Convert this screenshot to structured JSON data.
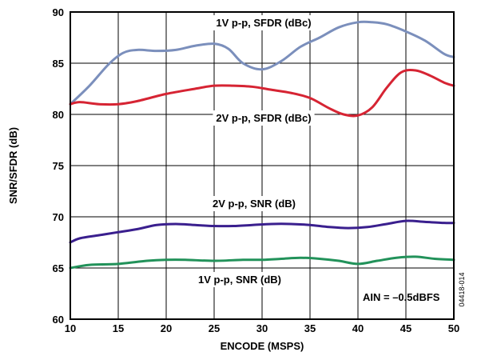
{
  "chart_data": {
    "type": "line",
    "xlabel": "ENCODE (MSPS)",
    "ylabel": "SNR/SFDR (dB)",
    "xlim": [
      10,
      50
    ],
    "ylim": [
      60,
      90
    ],
    "xticks": [
      10,
      15,
      20,
      25,
      30,
      35,
      40,
      45,
      50
    ],
    "yticks": [
      60,
      65,
      70,
      75,
      80,
      85,
      90
    ],
    "grid": true,
    "series": [
      {
        "name": "1V p-p, SFDR (dBc)",
        "color": "#7b8fbc",
        "x": [
          10,
          12,
          14,
          15.5,
          17,
          19,
          21,
          23,
          25,
          26.5,
          28,
          30,
          32,
          34,
          36,
          38,
          40,
          41.5,
          43,
          45,
          47,
          49,
          50
        ],
        "y": [
          81.0,
          82.8,
          84.9,
          86.0,
          86.3,
          86.2,
          86.3,
          86.7,
          86.9,
          86.4,
          85.0,
          84.4,
          85.2,
          86.6,
          87.5,
          88.5,
          89.0,
          89.0,
          88.8,
          88.1,
          87.2,
          85.9,
          85.6
        ]
      },
      {
        "name": "2V p-p, SFDR (dBc)",
        "color": "#d62433",
        "x": [
          10,
          11,
          13,
          15,
          17,
          20,
          23,
          25,
          27,
          29,
          31,
          33,
          35,
          37,
          38.5,
          40,
          41.5,
          43,
          44.5,
          46,
          47.5,
          49,
          50
        ],
        "y": [
          81.0,
          81.2,
          81.0,
          81.0,
          81.3,
          82.0,
          82.5,
          82.8,
          82.8,
          82.7,
          82.4,
          82.1,
          81.6,
          80.6,
          80.0,
          79.9,
          80.7,
          82.6,
          84.1,
          84.3,
          83.8,
          83.1,
          82.8
        ]
      },
      {
        "name": "2V p-p, SNR (dB)",
        "color": "#3a1f8e",
        "x": [
          10,
          11,
          13,
          15,
          17,
          19,
          21,
          23,
          25,
          27,
          29,
          31,
          33,
          35,
          37,
          39,
          41,
          43,
          45,
          47,
          49,
          50
        ],
        "y": [
          67.5,
          67.9,
          68.2,
          68.5,
          68.8,
          69.2,
          69.3,
          69.2,
          69.1,
          69.1,
          69.2,
          69.3,
          69.3,
          69.2,
          69.0,
          68.9,
          69.0,
          69.3,
          69.6,
          69.5,
          69.4,
          69.4
        ]
      },
      {
        "name": "1V p-p, SNR (dB)",
        "color": "#22925a",
        "x": [
          10,
          12,
          15,
          18,
          20,
          22,
          25,
          28,
          30,
          32,
          34,
          36,
          38,
          40,
          42,
          44,
          46,
          48,
          50
        ],
        "y": [
          65.0,
          65.3,
          65.4,
          65.7,
          65.8,
          65.8,
          65.7,
          65.8,
          65.8,
          65.9,
          66.0,
          65.9,
          65.7,
          65.4,
          65.7,
          66.0,
          66.1,
          65.9,
          65.8
        ]
      }
    ],
    "annotations": [
      {
        "text": "AIN = –0.5dBFS",
        "x": 40.5,
        "y": 61.8
      }
    ],
    "figure_id": "04418-014"
  }
}
